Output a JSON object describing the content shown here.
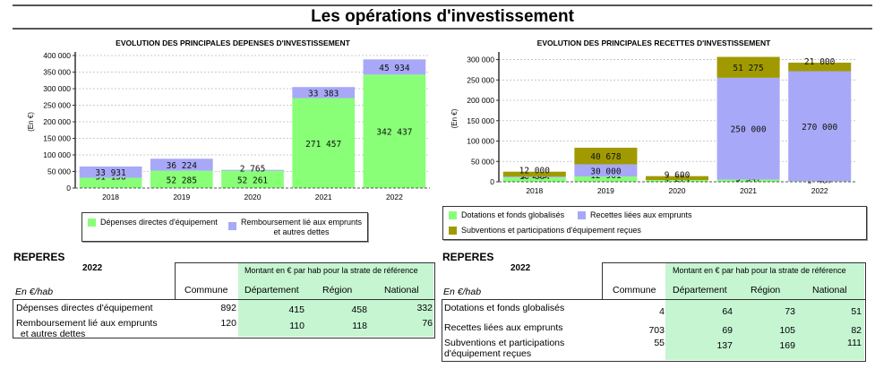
{
  "page_title": "Les opérations d'investissement",
  "colors": {
    "green": "#88ff77",
    "lavender": "#a8a8f8",
    "olive": "#a09a00",
    "table_green": "#c6f5d2"
  },
  "chart_data": [
    {
      "type": "bar",
      "stacked": true,
      "title": "EVOLUTION DES PRINCIPALES DEPENSES D'INVESTISSEMENT",
      "ylabel": "(En €)",
      "xlabel": "",
      "categories": [
        "2018",
        "2019",
        "2020",
        "2021",
        "2022"
      ],
      "ylim": [
        0,
        400000
      ],
      "yticks": [
        0,
        50000,
        100000,
        150000,
        200000,
        250000,
        300000,
        350000,
        400000
      ],
      "ytick_labels": [
        "0",
        "50 000",
        "100 000",
        "150 000",
        "200 000",
        "250 000",
        "300 000",
        "350 000",
        "400 000"
      ],
      "grid": true,
      "legend_position": "bottom",
      "series": [
        {
          "name": "Dépenses directes d'équipement",
          "color": "#88ff77",
          "values": [
            31158,
            52285,
            52261,
            271457,
            342437
          ],
          "labels": [
            "31 158",
            "52 285",
            "52 261",
            "271 457",
            "342 437"
          ]
        },
        {
          "name": "Remboursement lié aux emprunts et autres dettes",
          "color": "#a8a8f8",
          "values": [
            33931,
            36224,
            2765,
            33383,
            45934
          ],
          "labels": [
            "33 931",
            "36 224",
            "2 765",
            "33 383",
            "45 934"
          ]
        }
      ],
      "legend": [
        {
          "label": "Dépenses directes d'équipement",
          "label2": ""
        },
        {
          "label": "Remboursement lié aux emprunts",
          "label2": "et autres dettes"
        }
      ]
    },
    {
      "type": "bar",
      "stacked": true,
      "title": "EVOLUTION DES PRINCIPALES RECETTES D'INVESTISSEMENT",
      "ylabel": "(En €)",
      "xlabel": "",
      "categories": [
        "2018",
        "2019",
        "2020",
        "2021",
        "2022"
      ],
      "ylim": [
        0,
        310000
      ],
      "yticks": [
        0,
        50000,
        100000,
        150000,
        200000,
        250000,
        300000
      ],
      "ytick_labels": [
        "0",
        "50 000",
        "100 000",
        "150 000",
        "200 000",
        "250 000",
        "300 000"
      ],
      "grid": true,
      "legend_position": "bottom",
      "series": [
        {
          "name": "Dotations et fonds globalisés",
          "color": "#88ff77",
          "values": [
            10604,
            12961,
            4274,
            5347,
            1487
          ],
          "labels": [
            "10 604",
            "12 961",
            "4 274",
            "5 347",
            "1 487"
          ]
        },
        {
          "name": "Recettes liées aux emprunts",
          "color": "#a8a8f8",
          "values": [
            2203,
            30000,
            0,
            250000,
            270000
          ],
          "labels": [
            "2 203",
            "30 000",
            "",
            "250 000",
            "270 000"
          ]
        },
        {
          "name": "Subventions et participations d'équipement reçues",
          "color": "#a09a00",
          "values": [
            12000,
            40678,
            9600,
            51275,
            21000
          ],
          "labels": [
            "12 000",
            "40 678",
            "9 600",
            "51 275",
            "21 000"
          ]
        }
      ],
      "legend": [
        {
          "label": "Dotations et fonds globalisés"
        },
        {
          "label": "Recettes liées aux emprunts"
        },
        {
          "label": "Subventions et participations d'équipement reçues"
        }
      ]
    }
  ],
  "reperes": [
    {
      "heading": "REPERES",
      "year": "2022",
      "unit": "En €/hab",
      "strate_header": "Montant en € par hab pour la strate de référence",
      "columns": [
        "Commune",
        "Département",
        "Région",
        "National"
      ],
      "rows": [
        {
          "label": "Dépenses directes d'équipement",
          "label2": "",
          "values": [
            "892",
            "415",
            "458",
            "332"
          ]
        },
        {
          "label": "Remboursement lié aux emprunts",
          "label2": " et autres dettes",
          "values": [
            "120",
            "110",
            "118",
            "76"
          ]
        }
      ]
    },
    {
      "heading": "REPERES",
      "year": "2022",
      "unit": "En €/hab",
      "strate_header": "Montant en € par hab pour la strate de référence",
      "columns": [
        "Commune",
        "Département",
        "Région",
        "National"
      ],
      "rows": [
        {
          "label": "Dotations et fonds globalisés",
          "label2": "",
          "values": [
            "4",
            "64",
            "73",
            "51"
          ]
        },
        {
          "label": "Recettes liées aux emprunts",
          "label2": "",
          "values": [
            "703",
            "69",
            "105",
            "82"
          ]
        },
        {
          "label": "Subventions et participations",
          "label2": "d'équipement reçues",
          "values": [
            "55",
            "137",
            "169",
            "111"
          ]
        }
      ]
    }
  ]
}
